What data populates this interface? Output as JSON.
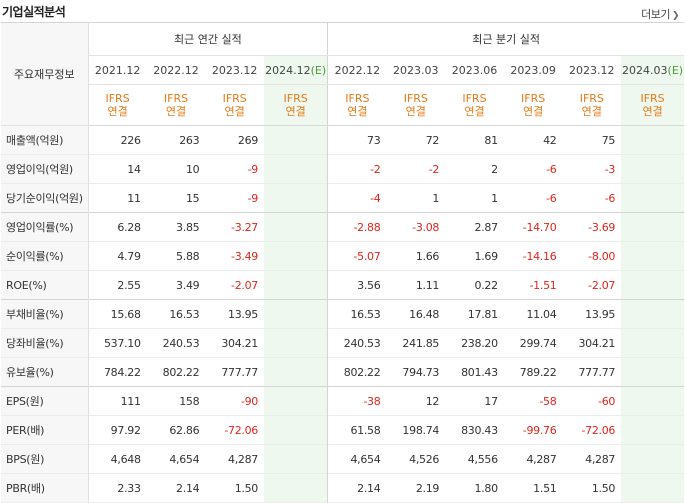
{
  "title": "기업실적분석",
  "more": "더보기",
  "header": {
    "label_col": "주요재무정보",
    "annual_group": "최근 연간 실적",
    "quarter_group": "최근 분기 실적",
    "annual_periods": [
      "2021.12",
      "2022.12",
      "2023.12",
      "2024.12"
    ],
    "annual_est_mark": "(E)",
    "quarter_periods": [
      "2022.12",
      "2023.03",
      "2023.06",
      "2023.09",
      "2023.12",
      "2024.03"
    ],
    "quarter_est_mark": "(E)",
    "ifrs_line1": "IFRS",
    "ifrs_line2": "연결"
  },
  "rows": [
    {
      "label": "매출액(억원)",
      "annual": [
        "226",
        "263",
        "269",
        ""
      ],
      "quarter": [
        "73",
        "72",
        "81",
        "42",
        "75",
        ""
      ]
    },
    {
      "label": "영업이익(억원)",
      "annual": [
        "14",
        "10",
        "-9",
        ""
      ],
      "quarter": [
        "-2",
        "-2",
        "2",
        "-6",
        "-3",
        ""
      ]
    },
    {
      "label": "당기순이익(억원)",
      "annual": [
        "11",
        "15",
        "-9",
        ""
      ],
      "quarter": [
        "-4",
        "1",
        "1",
        "-6",
        "-6",
        ""
      ]
    },
    {
      "label": "영업이익률(%)",
      "annual": [
        "6.28",
        "3.85",
        "-3.27",
        ""
      ],
      "quarter": [
        "-2.88",
        "-3.08",
        "2.87",
        "-14.70",
        "-3.69",
        ""
      ]
    },
    {
      "label": "순이익률(%)",
      "annual": [
        "4.79",
        "5.88",
        "-3.49",
        ""
      ],
      "quarter": [
        "-5.07",
        "1.66",
        "1.69",
        "-14.16",
        "-8.00",
        ""
      ]
    },
    {
      "label": "ROE(%)",
      "annual": [
        "2.55",
        "3.49",
        "-2.07",
        ""
      ],
      "quarter": [
        "3.56",
        "1.11",
        "0.22",
        "-1.51",
        "-2.07",
        ""
      ]
    },
    {
      "label": "부채비율(%)",
      "annual": [
        "15.68",
        "16.53",
        "13.95",
        ""
      ],
      "quarter": [
        "16.53",
        "16.48",
        "17.81",
        "11.04",
        "13.95",
        ""
      ]
    },
    {
      "label": "당좌비율(%)",
      "annual": [
        "537.10",
        "240.53",
        "304.21",
        ""
      ],
      "quarter": [
        "240.53",
        "241.85",
        "238.20",
        "299.74",
        "304.21",
        ""
      ]
    },
    {
      "label": "유보율(%)",
      "annual": [
        "784.22",
        "802.22",
        "777.77",
        ""
      ],
      "quarter": [
        "802.22",
        "794.73",
        "801.43",
        "789.22",
        "777.77",
        ""
      ]
    },
    {
      "label": "EPS(원)",
      "annual": [
        "111",
        "158",
        "-90",
        ""
      ],
      "quarter": [
        "-38",
        "12",
        "17",
        "-58",
        "-60",
        ""
      ]
    },
    {
      "label": "PER(배)",
      "annual": [
        "97.92",
        "62.86",
        "-72.06",
        ""
      ],
      "quarter": [
        "61.58",
        "198.74",
        "830.43",
        "-99.76",
        "-72.06",
        ""
      ]
    },
    {
      "label": "BPS(원)",
      "annual": [
        "4,648",
        "4,654",
        "4,287",
        ""
      ],
      "quarter": [
        "4,654",
        "4,526",
        "4,556",
        "4,287",
        "4,287",
        ""
      ]
    },
    {
      "label": "PBR(배)",
      "annual": [
        "2.33",
        "2.14",
        "1.50",
        ""
      ],
      "quarter": [
        "2.14",
        "2.19",
        "1.80",
        "1.51",
        "1.50",
        ""
      ]
    }
  ]
}
